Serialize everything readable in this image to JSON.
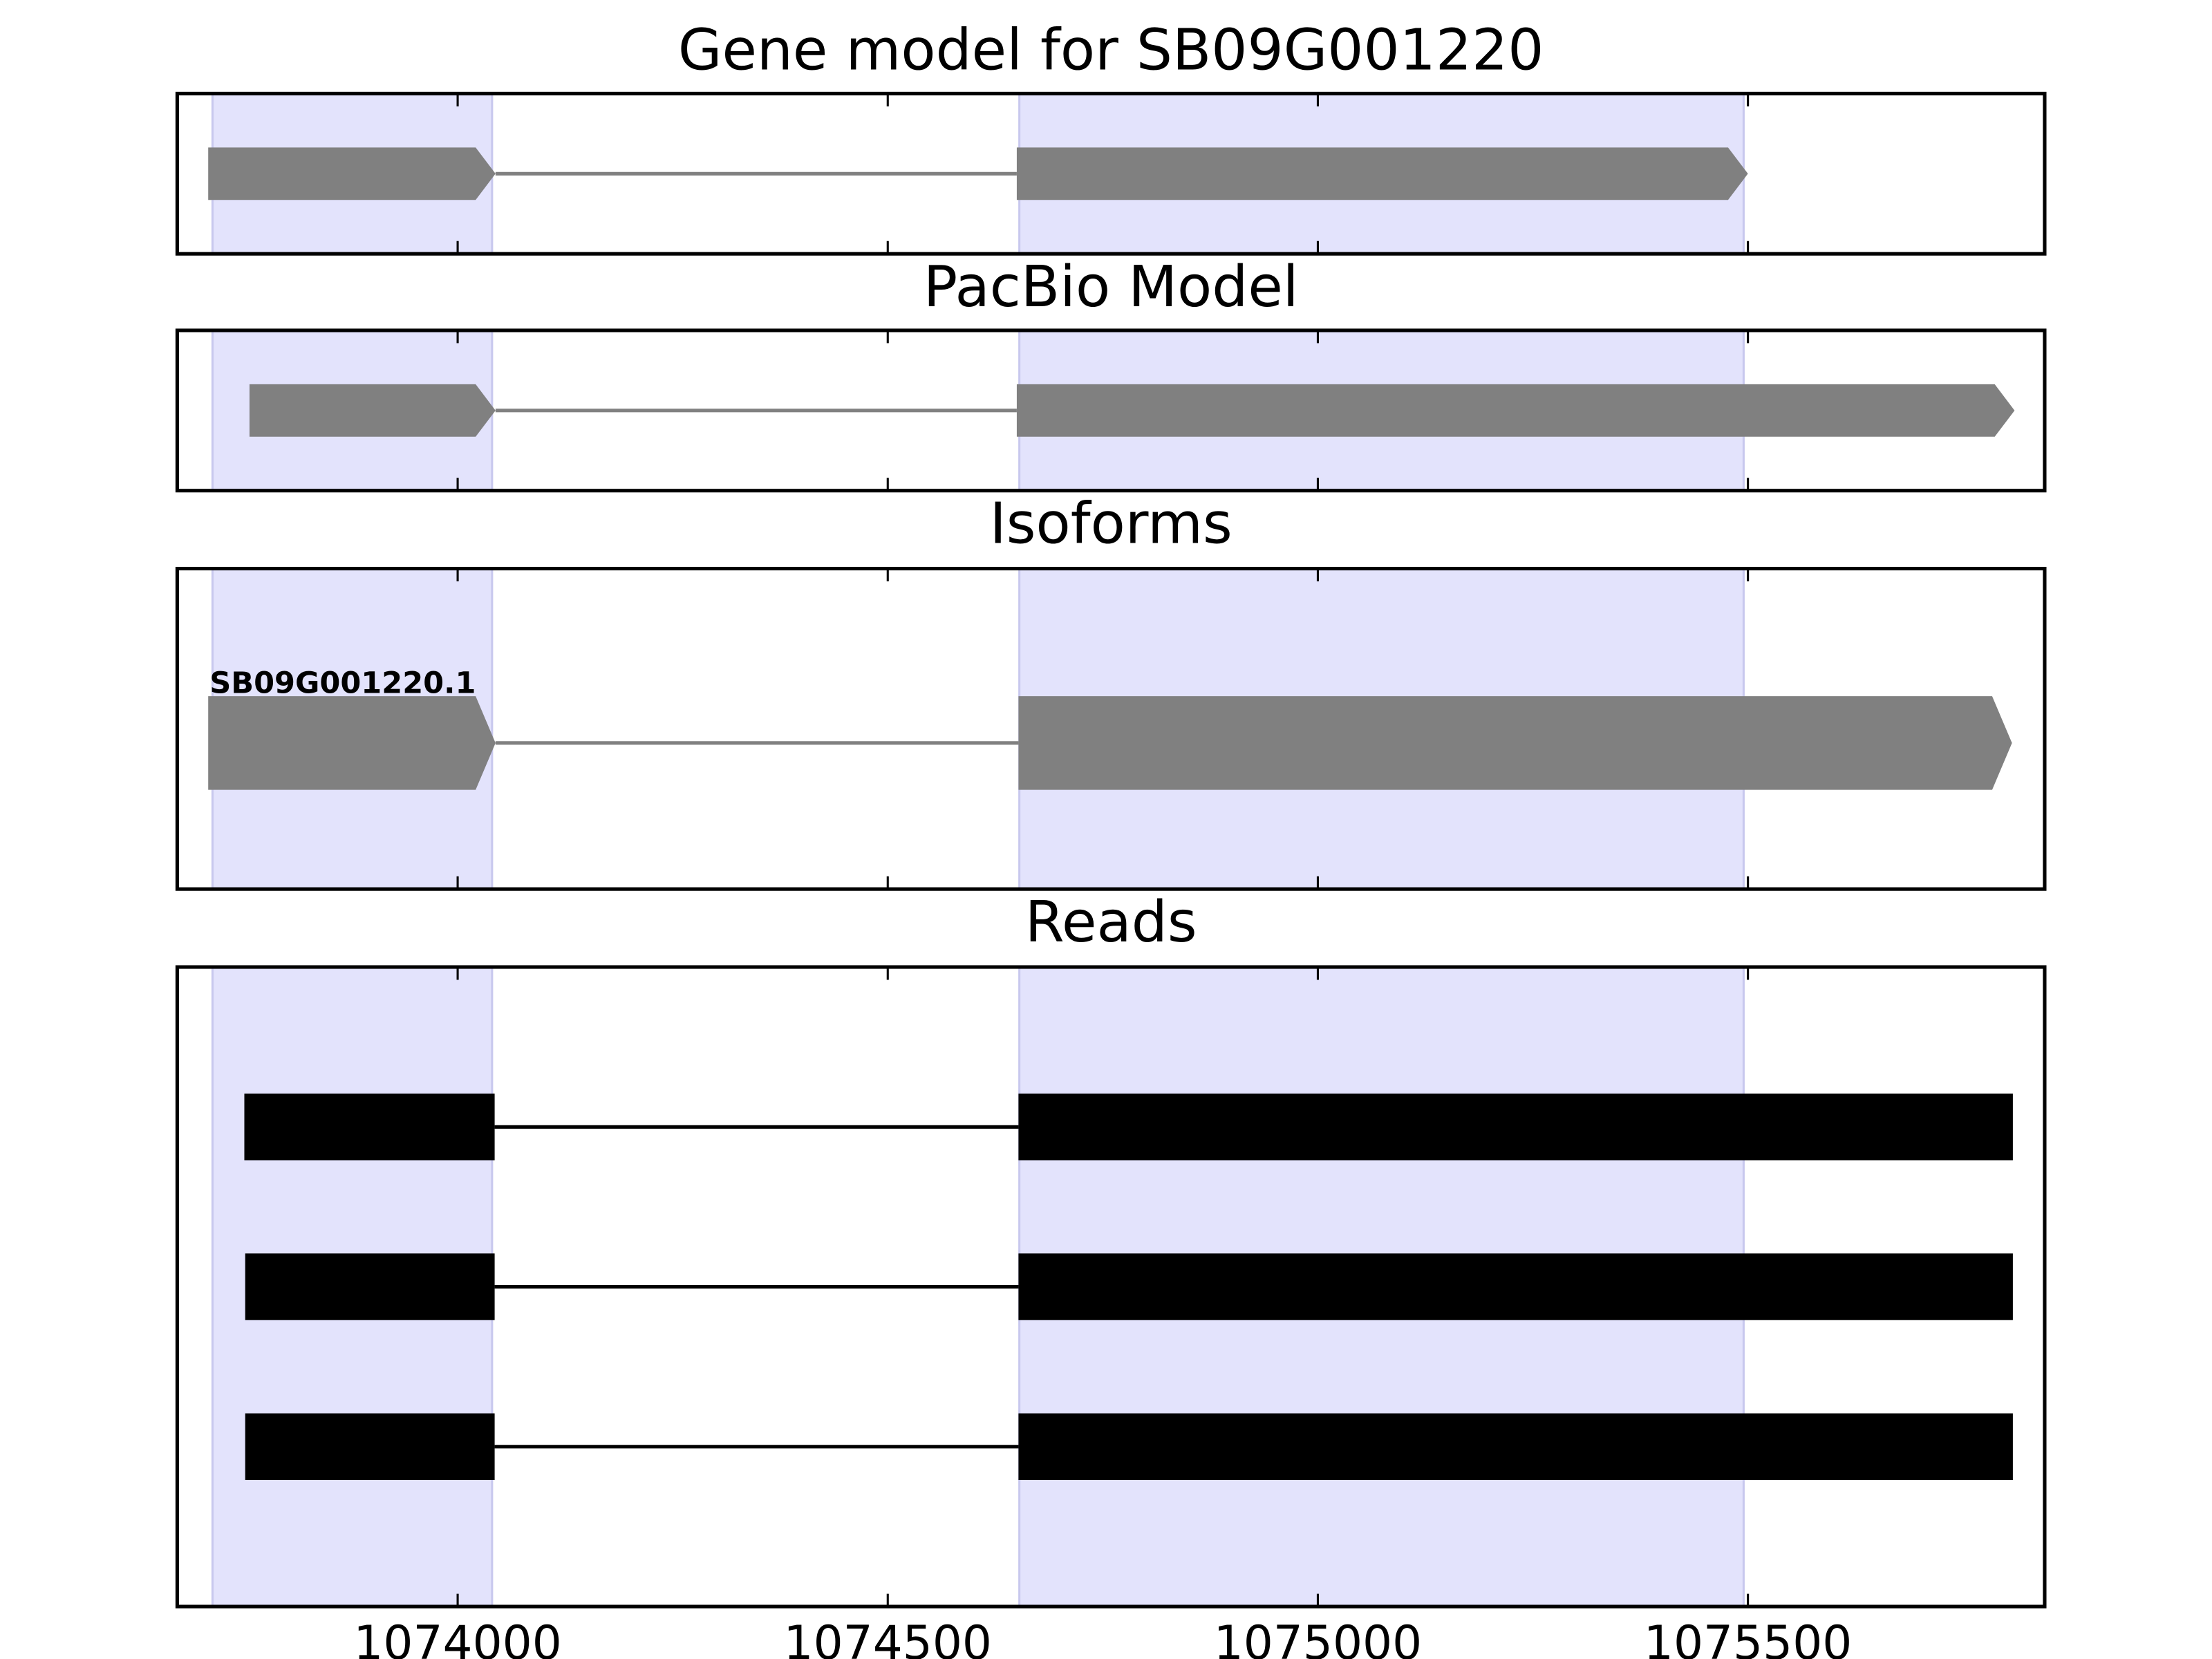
{
  "chart_data": [
    {
      "type": "gene-track",
      "title": "Gene model for SB09G001220",
      "color": "#808080",
      "highlight_color": "#e3e3fc",
      "highlights": [
        [
          1073715,
          1074040
        ],
        [
          1074653,
          1075495
        ]
      ],
      "xlim": [
        1073674,
        1075845
      ],
      "xticks": [
        1074000,
        1074500,
        1075000,
        1075500
      ],
      "tracks": [
        {
          "exons": [
            [
              1073710,
              1074044
            ],
            [
              1074650,
              1075500
            ]
          ]
        }
      ]
    },
    {
      "type": "gene-track",
      "title": "PacBio Model",
      "color": "#808080",
      "highlight_color": "#e3e3fc",
      "highlights": [
        [
          1073715,
          1074040
        ],
        [
          1074653,
          1075495
        ]
      ],
      "xlim": [
        1073674,
        1075845
      ],
      "xticks": [
        1074000,
        1074500,
        1075000,
        1075500
      ],
      "tracks": [
        {
          "exons": [
            [
              1073758,
              1074044
            ],
            [
              1074650,
              1075810
            ]
          ]
        }
      ]
    },
    {
      "type": "gene-track",
      "title": "Isoforms",
      "color": "#808080",
      "highlight_color": "#e3e3fc",
      "highlights": [
        [
          1073715,
          1074040
        ],
        [
          1074653,
          1075495
        ]
      ],
      "xlim": [
        1073674,
        1075845
      ],
      "xticks": [
        1074000,
        1074500,
        1075000,
        1075500
      ],
      "tracks": [
        {
          "name": "SB09G001220.1",
          "exons": [
            [
              1073710,
              1074044
            ],
            [
              1074652,
              1075807
            ]
          ]
        }
      ]
    },
    {
      "type": "read-track",
      "title": "Reads",
      "color": "#000000",
      "highlight_color": "#e3e3fc",
      "highlights": [
        [
          1073715,
          1074040
        ],
        [
          1074653,
          1075495
        ]
      ],
      "xlim": [
        1073674,
        1075845
      ],
      "xticks": [
        1074000,
        1074500,
        1075000,
        1075500
      ],
      "tick_labels": true,
      "tracks": [
        {
          "exons": [
            [
              1073752,
              1074043
            ],
            [
              1074652,
              1075808
            ]
          ]
        },
        {
          "exons": [
            [
              1073753,
              1074043
            ],
            [
              1074652,
              1075808
            ]
          ]
        },
        {
          "exons": [
            [
              1073753,
              1074043
            ],
            [
              1074652,
              1075808
            ]
          ]
        }
      ]
    }
  ]
}
